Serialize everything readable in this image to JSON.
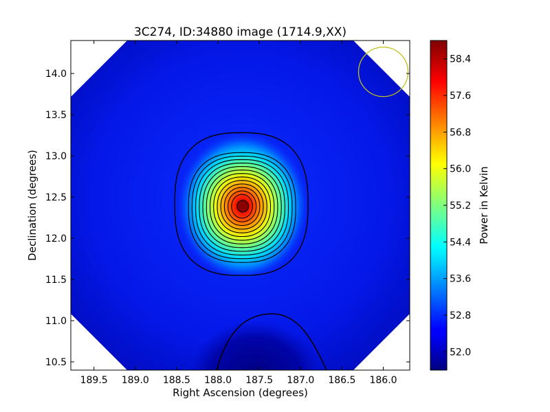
{
  "chart_data": {
    "type": "heatmap",
    "title": "3C274, ID:34880 image (1714.9,XX)",
    "xlabel": "Right Ascension (degrees)",
    "ylabel": "Declination (degrees)",
    "xlim": [
      189.78,
      185.68
    ],
    "ylim": [
      10.4,
      14.4
    ],
    "x_inverted": true,
    "xticks": [
      189.5,
      189.0,
      188.5,
      188.0,
      187.5,
      187.0,
      186.5,
      186.0
    ],
    "xtick_labels": [
      "189.5",
      "189.0",
      "188.5",
      "188.0",
      "187.5",
      "187.0",
      "186.5",
      "186.0"
    ],
    "yticks": [
      10.5,
      11.0,
      11.5,
      12.0,
      12.5,
      13.0,
      13.5,
      14.0
    ],
    "ytick_labels": [
      "10.5",
      "11.0",
      "11.5",
      "12.0",
      "12.5",
      "13.0",
      "13.5",
      "14.0"
    ],
    "colormap": "jet",
    "colorbar": {
      "label": "Power in Kelvin",
      "min": 51.6,
      "max": 58.8,
      "ticks": [
        52.0,
        52.8,
        53.6,
        54.4,
        55.2,
        56.0,
        56.8,
        57.6,
        58.4
      ],
      "tick_labels": [
        "52.0",
        "52.8",
        "53.6",
        "54.4",
        "55.2",
        "56.0",
        "56.8",
        "57.6",
        "58.4"
      ]
    },
    "background_level": 52.3,
    "source": {
      "ra": 187.7,
      "dec": 12.39,
      "peak": 58.8
    },
    "low_region": {
      "ra": 187.55,
      "dec": 10.5,
      "level": 51.85
    },
    "beam_circle": {
      "ra": 186.0,
      "dec": 14.02,
      "color": "#bfbf1f"
    },
    "contour_color": "#000000",
    "grid": false
  }
}
